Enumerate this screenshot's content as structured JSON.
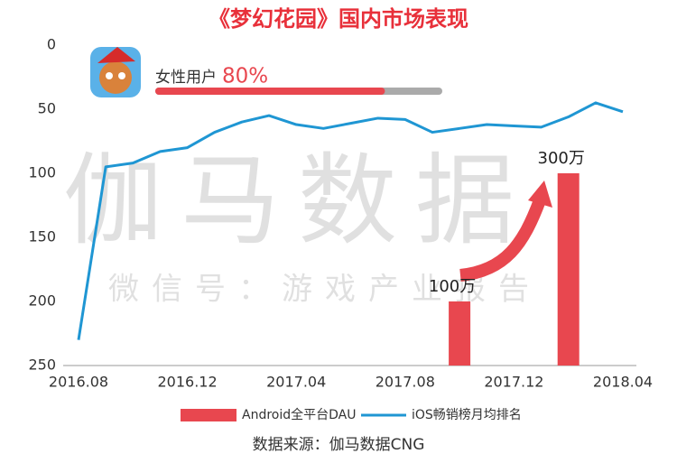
{
  "chart_data": {
    "type": "bar_line",
    "title": "《梦幻花园》国内市场表现",
    "watermark": "伽马数据",
    "watermark_sub": "微信号：游戏产业报告",
    "source": "数据来源：伽马数据CNG",
    "annotation": {
      "label": "女性用户",
      "value": 80,
      "value_label": "80%"
    },
    "xlim": [
      0,
      20
    ],
    "xticks": [
      {
        "value": 0,
        "label": "2016.08"
      },
      {
        "value": 4,
        "label": "2016.12"
      },
      {
        "value": 8,
        "label": "2017.04"
      },
      {
        "value": 12,
        "label": "2017.08"
      },
      {
        "value": 16,
        "label": "2017.12"
      },
      {
        "value": 20,
        "label": "2018.04"
      }
    ],
    "ylim": [
      250,
      0
    ],
    "yticks": [
      0,
      50,
      100,
      150,
      200,
      250
    ],
    "y2lim": [
      0,
      500
    ],
    "series": [
      {
        "name": "Android全平台DAU",
        "type": "bar",
        "axis": "y2",
        "color": "#e8474f",
        "x": [
          14,
          18
        ],
        "values": [
          100,
          300
        ],
        "value_labels": [
          "100万",
          "300万"
        ]
      },
      {
        "name": "iOS畅销榜月均排名",
        "type": "line",
        "color": "#1f96d3",
        "x": [
          0,
          1,
          2,
          3,
          4,
          5,
          6,
          7,
          8,
          9,
          10,
          11,
          12,
          13,
          14,
          15,
          16,
          17,
          18,
          19,
          20
        ],
        "values": [
          230,
          95,
          92,
          83,
          80,
          68,
          60,
          55,
          62,
          65,
          61,
          57,
          58,
          68,
          65,
          62,
          63,
          64,
          56,
          45,
          52
        ]
      }
    ]
  }
}
